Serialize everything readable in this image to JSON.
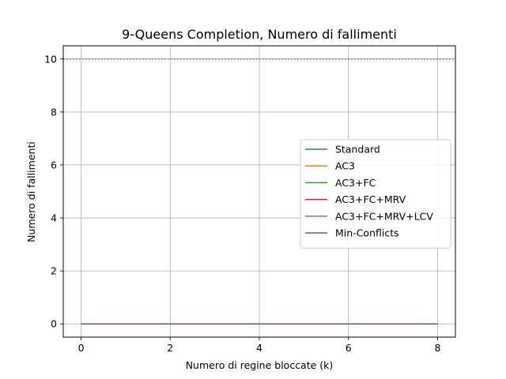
{
  "chart_data": {
    "type": "line",
    "title": "9-Queens Completion, Numero di fallimenti",
    "xlabel": "Numero di regine bloccate (k)",
    "ylabel": "Numero di fallimenti",
    "xlim": [
      -0.4,
      8.4
    ],
    "ylim": [
      -0.5,
      10.5
    ],
    "xticks": [
      0,
      2,
      4,
      6,
      8
    ],
    "yticks": [
      0,
      2,
      4,
      6,
      8,
      10
    ],
    "grid": true,
    "legend_position": "right",
    "x": [
      0,
      1,
      2,
      3,
      4,
      5,
      6,
      7,
      8
    ],
    "series": [
      {
        "name": "Standard",
        "color": "#1f77b4",
        "values": [
          0,
          0,
          0,
          0,
          0,
          0,
          0,
          0,
          0
        ]
      },
      {
        "name": "AC3",
        "color": "#ff7f0e",
        "values": [
          0,
          0,
          0,
          0,
          0,
          0,
          0,
          0,
          0
        ]
      },
      {
        "name": "AC3+FC",
        "color": "#2ca02c",
        "values": [
          0,
          0,
          0,
          0,
          0,
          0,
          0,
          0,
          0
        ]
      },
      {
        "name": "AC3+FC+MRV",
        "color": "#d62728",
        "values": [
          0,
          0,
          0,
          0,
          0,
          0,
          0,
          0,
          0
        ]
      },
      {
        "name": "AC3+FC+MRV+LCV",
        "color": "#9467bd",
        "values": [
          0,
          0,
          0,
          0,
          0,
          0,
          0,
          0,
          0
        ]
      },
      {
        "name": "Min-Conflicts",
        "color": "#8c564b",
        "values": [
          0,
          0,
          0,
          0,
          0,
          0,
          0,
          0,
          0
        ]
      }
    ],
    "reference_line": {
      "y": 10,
      "style": "dotted",
      "color": "#1f77b4"
    }
  }
}
